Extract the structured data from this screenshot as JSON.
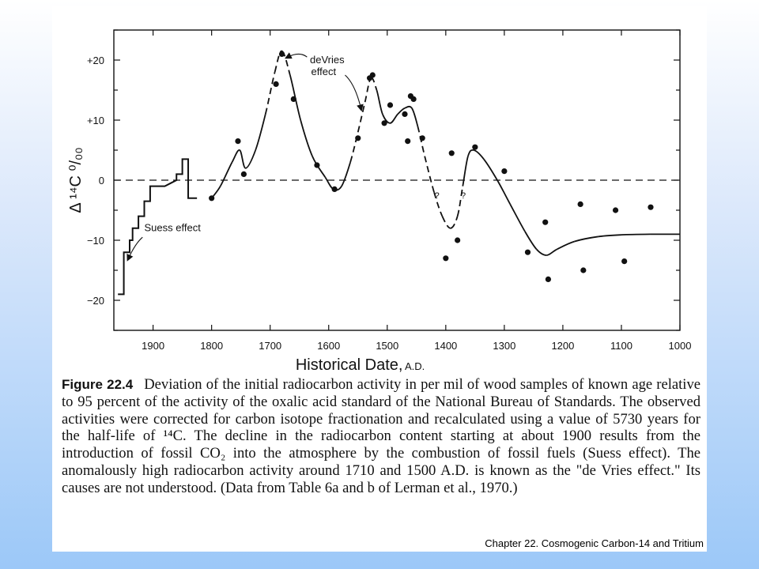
{
  "footer": "Chapter 22. Cosmogenic Carbon-14 and Tritium",
  "caption": {
    "label": "Figure 22.4",
    "text": "Deviation of the initial radiocarbon activity in per mil of wood samples of known age relative to 95 percent of the activity of the oxalic acid standard of the National Bureau of Standards. The observed activities were corrected for carbon isotope fractionation and recalculated using a value of 5730 years for the half-life of ¹⁴C. The decline in the radiocarbon content starting at about 1900 results from the introduction of fossil CO₂ into the atmosphere by the combustion of fossil fuels (Suess effect). The anomalously high radiocarbon activity around 1710 and 1500 A.D. is known as the \"de Vries effect.\" Its causes are not understood. (Data from Table 6a and b of Lerman et al., 1970.)"
  },
  "chart_data": {
    "type": "scatter",
    "xlabel": "Historical Date,",
    "xlabel_unit": "A.D.",
    "ylabel": "Δ ¹⁴C ⁰/₀₀",
    "xlim": [
      2000,
      1000
    ],
    "ylim": [
      -25,
      25
    ],
    "x_reversed": true,
    "x_ticks": [
      1900,
      1800,
      1700,
      1600,
      1500,
      1400,
      1300,
      1200,
      1100,
      1000
    ],
    "y_ticks": [
      20,
      10,
      0,
      -10,
      -20
    ],
    "y_tick_labels": [
      "+20",
      "+10",
      "0",
      "−10",
      "−20"
    ],
    "reference_line": {
      "y": 0,
      "style": "dashed"
    },
    "points": [
      {
        "x": 1800,
        "y": -3
      },
      {
        "x": 1755,
        "y": 6.5
      },
      {
        "x": 1745,
        "y": 1
      },
      {
        "x": 1690,
        "y": 16
      },
      {
        "x": 1680,
        "y": 21
      },
      {
        "x": 1660,
        "y": 13.5
      },
      {
        "x": 1620,
        "y": 2.5
      },
      {
        "x": 1590,
        "y": -1.5
      },
      {
        "x": 1550,
        "y": 7
      },
      {
        "x": 1530,
        "y": 17
      },
      {
        "x": 1525,
        "y": 17.5
      },
      {
        "x": 1505,
        "y": 9.5
      },
      {
        "x": 1495,
        "y": 12.5
      },
      {
        "x": 1470,
        "y": 11
      },
      {
        "x": 1465,
        "y": 6.5
      },
      {
        "x": 1460,
        "y": 14
      },
      {
        "x": 1455,
        "y": 13.5
      },
      {
        "x": 1440,
        "y": 7
      },
      {
        "x": 1400,
        "y": -13
      },
      {
        "x": 1390,
        "y": 4.5
      },
      {
        "x": 1380,
        "y": -10
      },
      {
        "x": 1350,
        "y": 5.5
      },
      {
        "x": 1300,
        "y": 1.5
      },
      {
        "x": 1260,
        "y": -12
      },
      {
        "x": 1230,
        "y": -7
      },
      {
        "x": 1225,
        "y": -16.5
      },
      {
        "x": 1170,
        "y": -4
      },
      {
        "x": 1165,
        "y": -15
      },
      {
        "x": 1110,
        "y": -5
      },
      {
        "x": 1095,
        "y": -13.5
      },
      {
        "x": 1050,
        "y": -4.5
      }
    ],
    "curve": [
      {
        "x": 1800,
        "y": -3
      },
      {
        "x": 1785,
        "y": -1
      },
      {
        "x": 1765,
        "y": 3
      },
      {
        "x": 1752,
        "y": 5
      },
      {
        "x": 1742,
        "y": 2
      },
      {
        "x": 1725,
        "y": 5
      },
      {
        "x": 1708,
        "y": 11
      },
      {
        "x": 1692,
        "y": 18
      },
      {
        "x": 1680,
        "y": 21.5
      },
      {
        "x": 1666,
        "y": 17.5
      },
      {
        "x": 1648,
        "y": 10
      },
      {
        "x": 1628,
        "y": 4
      },
      {
        "x": 1606,
        "y": 0.5
      },
      {
        "x": 1592,
        "y": -1.5
      },
      {
        "x": 1578,
        "y": -1
      },
      {
        "x": 1563,
        "y": 3
      },
      {
        "x": 1550,
        "y": 8
      },
      {
        "x": 1538,
        "y": 13
      },
      {
        "x": 1528,
        "y": 17
      },
      {
        "x": 1518,
        "y": 15
      },
      {
        "x": 1508,
        "y": 11
      },
      {
        "x": 1495,
        "y": 9.5
      },
      {
        "x": 1482,
        "y": 11
      },
      {
        "x": 1470,
        "y": 12
      },
      {
        "x": 1458,
        "y": 12
      },
      {
        "x": 1448,
        "y": 9
      },
      {
        "x": 1436,
        "y": 4
      },
      {
        "x": 1420,
        "y": -2
      },
      {
        "x": 1406,
        "y": -6
      },
      {
        "x": 1392,
        "y": -8
      },
      {
        "x": 1380,
        "y": -6
      },
      {
        "x": 1371,
        "y": -1
      },
      {
        "x": 1362,
        "y": 4
      },
      {
        "x": 1352,
        "y": 5
      },
      {
        "x": 1335,
        "y": 3.5
      },
      {
        "x": 1312,
        "y": 0
      },
      {
        "x": 1290,
        "y": -4
      },
      {
        "x": 1265,
        "y": -8.5
      },
      {
        "x": 1245,
        "y": -11.5
      },
      {
        "x": 1228,
        "y": -12.5
      },
      {
        "x": 1210,
        "y": -11.5
      },
      {
        "x": 1180,
        "y": -10.2
      },
      {
        "x": 1140,
        "y": -9.4
      },
      {
        "x": 1100,
        "y": -9.1
      },
      {
        "x": 1050,
        "y": -9
      },
      {
        "x": 1000,
        "y": -9
      }
    ],
    "curve_dashed_ranges": [
      [
        1700,
        1670
      ],
      [
        1560,
        1520
      ],
      [
        1450,
        1370
      ]
    ],
    "step_curve": [
      {
        "x": 1960,
        "y": -19
      },
      {
        "x": 1950,
        "y": -19
      },
      {
        "x": 1950,
        "y": -12
      },
      {
        "x": 1940,
        "y": -12
      },
      {
        "x": 1940,
        "y": -10
      },
      {
        "x": 1935,
        "y": -10
      },
      {
        "x": 1935,
        "y": -8
      },
      {
        "x": 1925,
        "y": -8
      },
      {
        "x": 1925,
        "y": -6
      },
      {
        "x": 1915,
        "y": -6
      },
      {
        "x": 1915,
        "y": -3.5
      },
      {
        "x": 1905,
        "y": -3.5
      },
      {
        "x": 1905,
        "y": -1
      },
      {
        "x": 1880,
        "y": -1
      },
      {
        "x": 1870,
        "y": -0.5
      },
      {
        "x": 1860,
        "y": 0
      },
      {
        "x": 1860,
        "y": 1
      },
      {
        "x": 1850,
        "y": 1
      },
      {
        "x": 1850,
        "y": 3.5
      },
      {
        "x": 1840,
        "y": 3.5
      },
      {
        "x": 1840,
        "y": -3
      },
      {
        "x": 1825,
        "y": -3
      }
    ],
    "question_marks": [
      {
        "x": 1415,
        "y": -2.5,
        "text": "?"
      },
      {
        "x": 1370,
        "y": -2.5,
        "text": "?"
      }
    ],
    "annotations": [
      {
        "text": "deVries",
        "x": 1632,
        "y": 19.5
      },
      {
        "text": "effect",
        "x": 1630,
        "y": 17.5
      },
      {
        "text": "Suess effect",
        "x": 1915,
        "y": -8.5
      }
    ]
  }
}
